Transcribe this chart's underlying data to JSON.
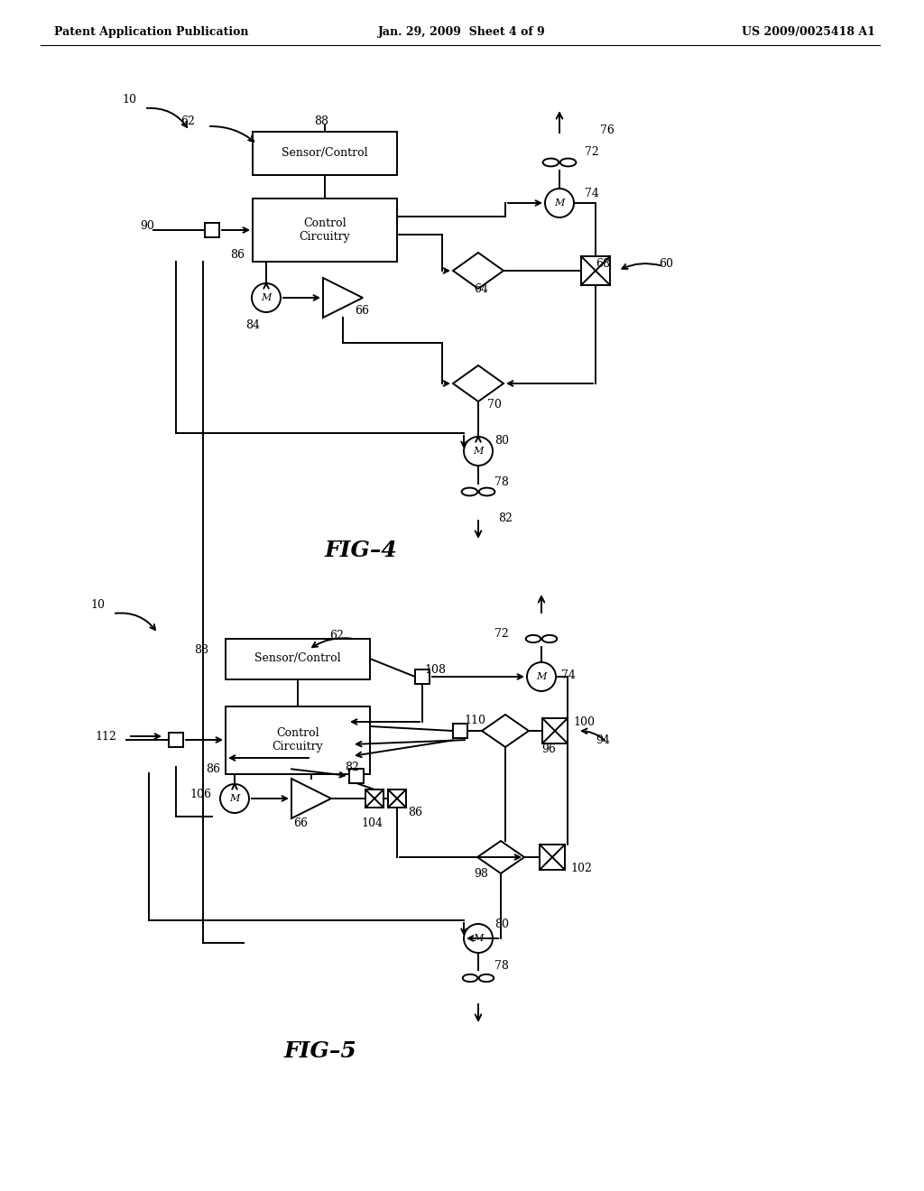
{
  "title_left": "Patent Application Publication",
  "title_center": "Jan. 29, 2009  Sheet 4 of 9",
  "title_right": "US 2009/0025418 A1",
  "fig4_label": "FIG–4",
  "fig5_label": "FIG–5",
  "background": "#ffffff",
  "line_color": "#000000"
}
